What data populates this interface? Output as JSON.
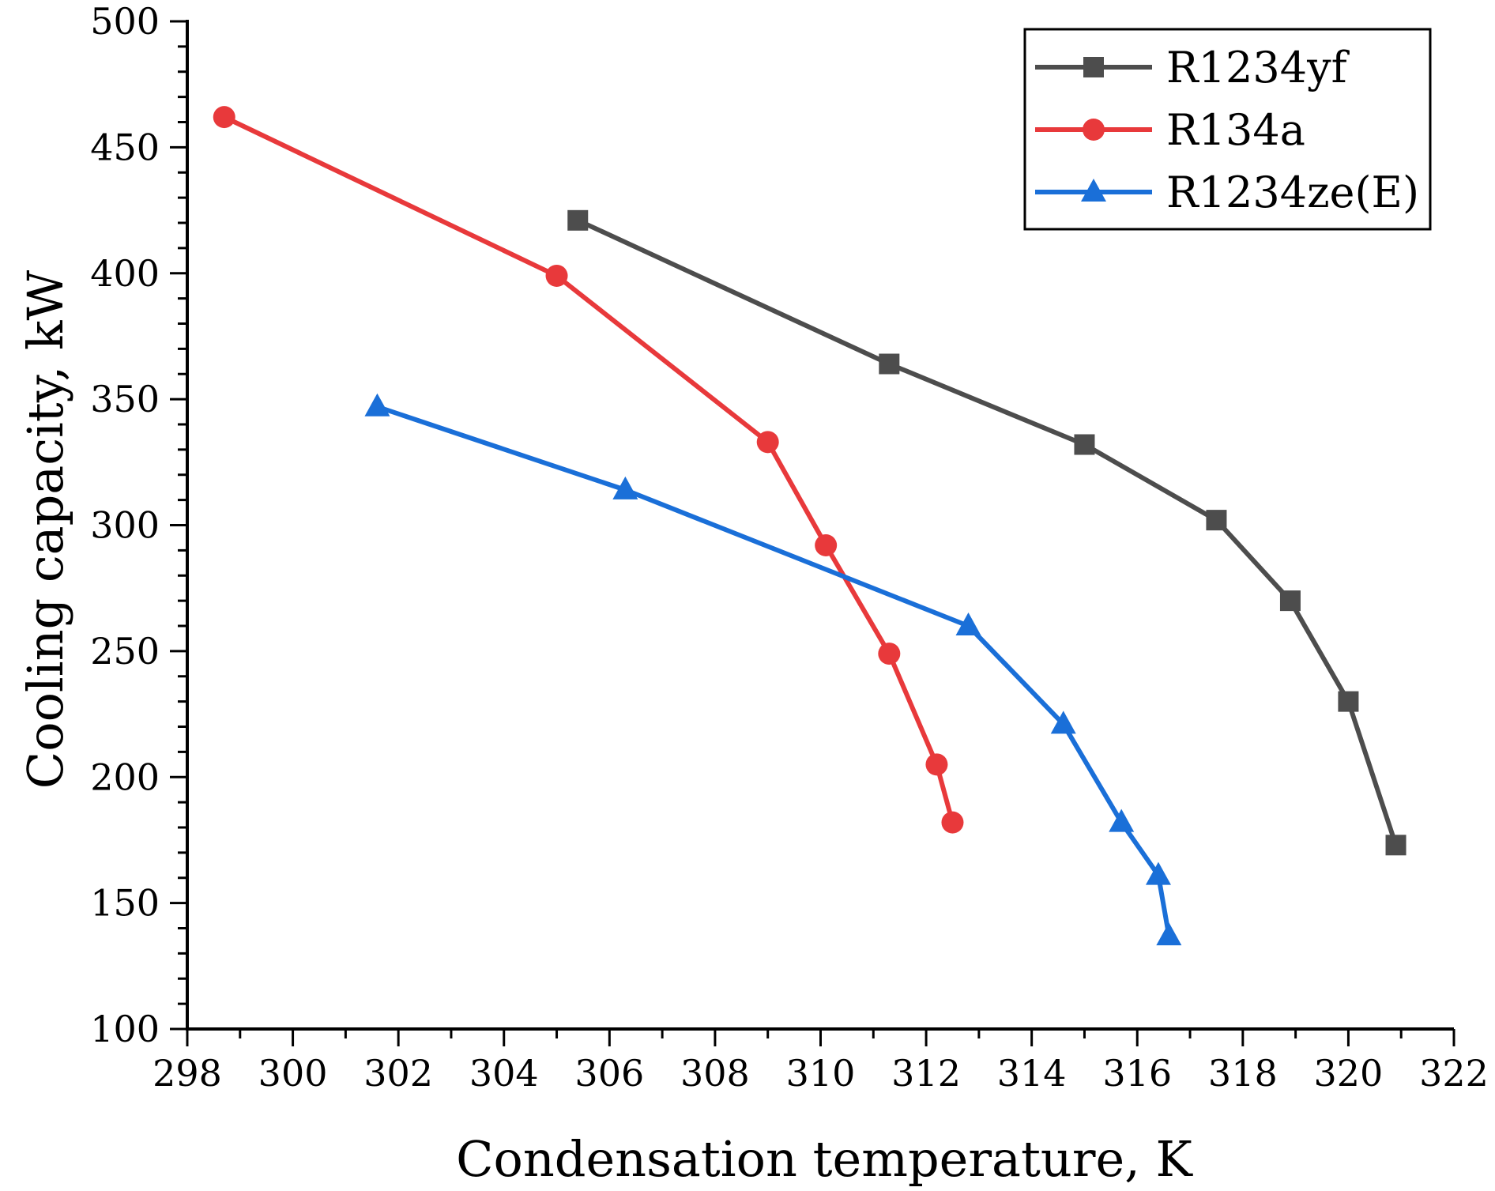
{
  "chart_data": {
    "type": "line",
    "title": "",
    "xlabel": "Condensation temperature, K",
    "ylabel": "Cooling capacity, kW",
    "xlim": [
      298,
      322
    ],
    "ylim": [
      100,
      500
    ],
    "xticks": [
      298,
      300,
      302,
      304,
      306,
      308,
      310,
      312,
      314,
      316,
      318,
      320,
      322
    ],
    "yticks": [
      100,
      150,
      200,
      250,
      300,
      350,
      400,
      450,
      500
    ],
    "grid": false,
    "legend_position": "top-right",
    "series": [
      {
        "name": "R1234yf",
        "color": "#4d4d4d",
        "marker": "square",
        "x": [
          305.4,
          311.3,
          315.0,
          317.5,
          318.9,
          320.0,
          320.9
        ],
        "y": [
          421,
          364,
          332,
          302,
          270,
          230,
          173
        ]
      },
      {
        "name": "R134a",
        "color": "#e8393b",
        "marker": "circle",
        "x": [
          298.7,
          305.0,
          309.0,
          310.1,
          311.3,
          312.2,
          312.5
        ],
        "y": [
          462,
          399,
          333,
          292,
          249,
          205,
          182
        ]
      },
      {
        "name": "R1234ze(E)",
        "color": "#1a6fd8",
        "marker": "triangle",
        "x": [
          301.6,
          306.3,
          312.8,
          314.6,
          315.7,
          316.4,
          316.6
        ],
        "y": [
          347,
          314,
          260,
          221,
          182,
          161,
          137
        ]
      }
    ]
  }
}
